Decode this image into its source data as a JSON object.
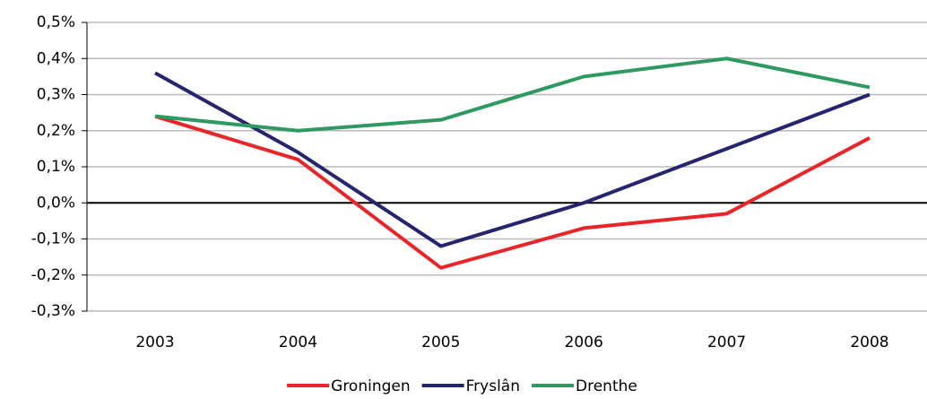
{
  "chart_data": {
    "type": "line",
    "categories": [
      "2003",
      "2004",
      "2005",
      "2006",
      "2007",
      "2008"
    ],
    "series": [
      {
        "name": "Groningen",
        "color": "#e8262a",
        "values": [
          0.24,
          0.12,
          -0.18,
          -0.07,
          -0.03,
          0.18
        ]
      },
      {
        "name": "Fryslân",
        "color": "#25256f",
        "values": [
          0.36,
          0.14,
          -0.12,
          0.0,
          0.15,
          0.3
        ]
      },
      {
        "name": "Drenthe",
        "color": "#2e9a62",
        "values": [
          0.24,
          0.2,
          0.23,
          0.35,
          0.4,
          0.32
        ]
      }
    ],
    "ylim": [
      -0.3,
      0.5
    ],
    "yticks": [
      {
        "value": -0.3,
        "label": "-0,3%"
      },
      {
        "value": -0.2,
        "label": "-0,2%"
      },
      {
        "value": -0.1,
        "label": "-0,1%"
      },
      {
        "value": 0,
        "label": "0,0%"
      },
      {
        "value": 0.1,
        "label": "0,1%"
      },
      {
        "value": 0.2,
        "label": "0,2%"
      },
      {
        "value": 0.3,
        "label": "0,3%"
      },
      {
        "value": 0.4,
        "label": "0,4%"
      },
      {
        "value": 0.5,
        "label": "0,5%"
      }
    ],
    "grid": true,
    "legend": "bottom"
  }
}
